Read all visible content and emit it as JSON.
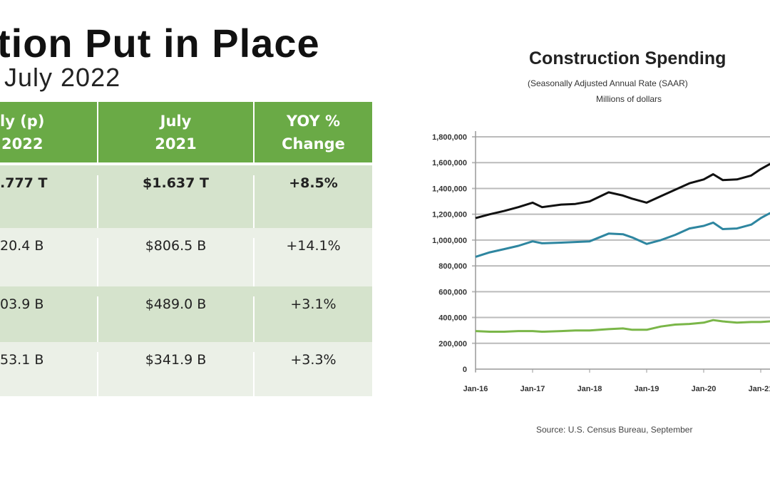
{
  "slide": {
    "title": "tion Put in Place",
    "subtitle": "July 2022"
  },
  "table": {
    "headers": [
      [
        "ly (p)",
        "2022"
      ],
      [
        "July",
        "2021"
      ],
      [
        "YOY %",
        "Change"
      ]
    ],
    "rows": [
      [
        ".777 T",
        "$1.637 T",
        "+8.5%"
      ],
      [
        "20.4 B",
        "$806.5 B",
        "+14.1%"
      ],
      [
        "03.9 B",
        "$489.0 B",
        "+3.1%"
      ],
      [
        "53.1 B",
        "$341.9 B",
        "+3.3%"
      ]
    ],
    "colors": {
      "header": "#6aaa46",
      "row_dark": "#d5e3cc",
      "row_light": "#ebf0e7"
    }
  },
  "chart_data": {
    "type": "line",
    "title": "Construction Spending",
    "subtitle": "(Seasonally Adjusted Annual Rate (SAAR)",
    "ylabel": "Millions of dollars",
    "source": "Source: U.S. Census Bureau, September",
    "ylim": [
      0,
      1800000
    ],
    "yticks": [
      "0",
      "200,000",
      "400,000",
      "600,000",
      "800,000",
      "1,000,000",
      "1,200,000",
      "1,400,000",
      "1,600,000",
      "1,800,000"
    ],
    "xticks": [
      "Jan-16",
      "Jan-17",
      "Jan-18",
      "Jan-19",
      "Jan-20",
      "Jan-21"
    ],
    "grid": true,
    "x": [
      "2016-01",
      "2016-04",
      "2016-07",
      "2016-10",
      "2017-01",
      "2017-03",
      "2017-07",
      "2017-10",
      "2018-01",
      "2018-05",
      "2018-08",
      "2018-10",
      "2019-01",
      "2019-04",
      "2019-07",
      "2019-10",
      "2020-01",
      "2020-03",
      "2020-05",
      "2020-08",
      "2020-11",
      "2021-01",
      "2021-03"
    ],
    "series": [
      {
        "color": "#111111",
        "values": [
          1170000,
          1200000,
          1225000,
          1255000,
          1290000,
          1255000,
          1275000,
          1280000,
          1300000,
          1370000,
          1345000,
          1320000,
          1290000,
          1340000,
          1390000,
          1440000,
          1470000,
          1510000,
          1465000,
          1470000,
          1500000,
          1550000,
          1590000
        ]
      },
      {
        "color": "#2e86a0",
        "values": [
          870000,
          905000,
          930000,
          955000,
          990000,
          975000,
          980000,
          985000,
          990000,
          1050000,
          1045000,
          1020000,
          970000,
          1000000,
          1040000,
          1090000,
          1110000,
          1135000,
          1085000,
          1090000,
          1120000,
          1170000,
          1210000
        ]
      },
      {
        "color": "#7ab648",
        "values": [
          295000,
          290000,
          290000,
          295000,
          295000,
          290000,
          295000,
          300000,
          300000,
          310000,
          315000,
          305000,
          305000,
          330000,
          345000,
          350000,
          360000,
          380000,
          370000,
          360000,
          365000,
          365000,
          370000
        ]
      }
    ]
  }
}
